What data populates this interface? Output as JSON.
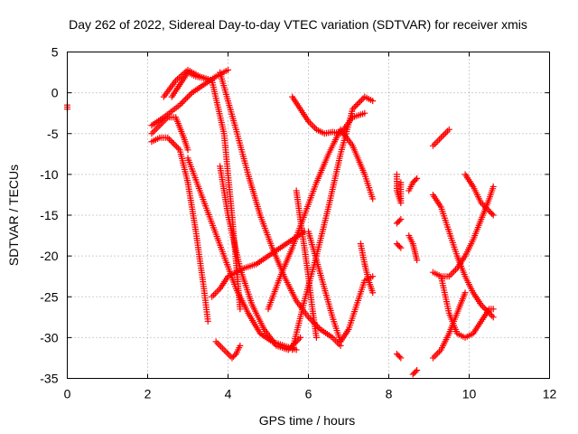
{
  "chart_data": {
    "type": "scatter",
    "title": "Day 262 of 2022, Sidereal Day-to-day VTEC variation (SDTVAR) for receiver xmis",
    "xlabel": "GPS time / hours",
    "ylabel": "SDTVAR / TECUs",
    "xlim": [
      0,
      12
    ],
    "ylim": [
      -35,
      5
    ],
    "xticks": [
      "0",
      "2",
      "4",
      "6",
      "8",
      "10",
      "12"
    ],
    "yticks": [
      "5",
      "0",
      "-5",
      "-10",
      "-15",
      "-20",
      "-25",
      "-30",
      "-35"
    ],
    "grid": true,
    "marker": "+",
    "color": "#ff0000",
    "series": [
      {
        "x": [
          0.0,
          0.0
        ],
        "y": [
          -1.5,
          -2.0
        ]
      },
      {
        "x": [
          2.1,
          2.4,
          2.8,
          3.1,
          3.4,
          3.7,
          4.0
        ],
        "y": [
          -4.0,
          -3.0,
          -1.5,
          0.0,
          1.0,
          2.0,
          2.8
        ]
      },
      {
        "x": [
          2.1,
          2.3,
          2.5,
          2.8,
          3.0,
          3.2,
          3.4,
          3.5
        ],
        "y": [
          -6.0,
          -5.5,
          -5.5,
          -7.0,
          -11.0,
          -17.0,
          -24.0,
          -28.0
        ]
      },
      {
        "x": [
          2.1,
          2.3,
          2.5,
          2.7,
          2.9,
          3.0
        ],
        "y": [
          -5.0,
          -4.0,
          -3.0,
          -3.0,
          -5.5,
          -7.0
        ]
      },
      {
        "x": [
          3.0,
          3.3,
          3.6,
          3.9,
          4.2,
          4.5,
          4.8,
          5.1,
          5.4,
          5.7
        ],
        "y": [
          -8.0,
          -12.0,
          -16.0,
          -20.0,
          -24.0,
          -27.0,
          -29.5,
          -30.5,
          -31.0,
          -31.5
        ]
      },
      {
        "x": [
          2.4,
          2.7,
          3.0,
          3.3,
          3.6,
          3.9,
          4.1,
          4.3
        ],
        "y": [
          -0.5,
          1.5,
          2.8,
          2.0,
          1.5,
          -5.0,
          -15.0,
          -26.5
        ]
      },
      {
        "x": [
          2.6,
          2.8,
          3.0,
          3.2,
          3.4,
          3.6
        ],
        "y": [
          -0.5,
          1.0,
          2.5,
          2.0,
          1.8,
          1.5
        ]
      },
      {
        "x": [
          3.6,
          3.8,
          4.0,
          4.2,
          4.4,
          4.7,
          5.0,
          5.3,
          5.6,
          5.9
        ],
        "y": [
          -25.0,
          -24.0,
          -22.5,
          -22.0,
          -21.5,
          -21.0,
          -20.0,
          -19.0,
          -18.0,
          -17.0
        ]
      },
      {
        "x": [
          3.7,
          3.9,
          4.1,
          4.2,
          4.3
        ],
        "y": [
          -30.5,
          -31.5,
          -32.5,
          -32.0,
          -31.0
        ]
      },
      {
        "x": [
          3.8,
          4.0,
          4.3,
          4.6,
          4.9,
          5.2,
          5.5,
          5.8
        ],
        "y": [
          -9.0,
          -15.0,
          -21.5,
          -26.0,
          -29.0,
          -31.0,
          -31.5,
          -30.0
        ]
      },
      {
        "x": [
          3.8,
          4.0,
          4.2,
          4.5,
          4.8,
          5.1,
          5.4,
          5.7,
          6.0,
          6.3,
          6.6,
          6.8
        ],
        "y": [
          2.5,
          -1.0,
          -4.5,
          -10.0,
          -15.0,
          -19.0,
          -22.5,
          -25.5,
          -27.5,
          -29.0,
          -30.0,
          -31.0
        ]
      },
      {
        "x": [
          5.0,
          5.3,
          5.6,
          5.9,
          6.2,
          6.5,
          6.8,
          7.1,
          7.4,
          7.6
        ],
        "y": [
          -26.5,
          -22.5,
          -19.0,
          -15.0,
          -11.0,
          -7.5,
          -4.5,
          -6.5,
          -10.0,
          -13.0
        ]
      },
      {
        "x": [
          5.6,
          5.8,
          6.0,
          6.2,
          6.4,
          6.6,
          6.8,
          7.1,
          7.4
        ],
        "y": [
          -0.5,
          -2.0,
          -3.5,
          -4.5,
          -5.0,
          -4.8,
          -5.0,
          -3.0,
          -2.5
        ]
      },
      {
        "x": [
          5.6,
          5.9,
          6.2,
          6.5,
          6.8,
          7.1,
          7.4,
          7.6
        ],
        "y": [
          -31.5,
          -25.5,
          -20.0,
          -14.0,
          -7.5,
          -2.0,
          -0.5,
          -1.0
        ]
      },
      {
        "x": [
          5.7,
          5.8,
          5.9,
          6.0,
          6.1,
          6.2
        ],
        "y": [
          -12.0,
          -15.5,
          -19.0,
          -22.5,
          -26.5,
          -30.0
        ]
      },
      {
        "x": [
          6.0,
          6.2,
          6.4,
          6.6,
          6.8,
          7.0,
          7.2,
          7.4,
          7.6
        ],
        "y": [
          -17.0,
          -20.5,
          -24.0,
          -27.5,
          -30.5,
          -29.0,
          -26.0,
          -23.0,
          -22.5
        ]
      },
      {
        "x": [
          7.3,
          7.4,
          7.5,
          7.6
        ],
        "y": [
          -18.5,
          -21.0,
          -23.0,
          -24.5
        ]
      },
      {
        "x": [
          8.2,
          8.2,
          8.3,
          8.3
        ],
        "y": [
          -10.0,
          -12.0,
          -13.5,
          -11.0
        ]
      },
      {
        "x": [
          8.2,
          8.3
        ],
        "y": [
          -16.0,
          -15.5
        ]
      },
      {
        "x": [
          8.2,
          8.3
        ],
        "y": [
          -18.5,
          -19.0
        ]
      },
      {
        "x": [
          8.2,
          8.3
        ],
        "y": [
          -32.0,
          -32.5
        ]
      },
      {
        "x": [
          8.5,
          8.6,
          8.7
        ],
        "y": [
          -12.0,
          -11.0,
          -10.5
        ]
      },
      {
        "x": [
          8.5,
          8.6,
          8.7
        ],
        "y": [
          -17.5,
          -18.5,
          -20.5
        ]
      },
      {
        "x": [
          8.6,
          8.7
        ],
        "y": [
          -34.5,
          -34.0
        ]
      },
      {
        "x": [
          9.1,
          9.3,
          9.5
        ],
        "y": [
          -6.5,
          -5.5,
          -4.5
        ]
      },
      {
        "x": [
          9.1,
          9.3,
          9.5,
          9.7,
          9.9,
          10.1,
          10.3,
          10.6
        ],
        "y": [
          -12.5,
          -14.0,
          -17.0,
          -20.0,
          -22.5,
          -24.5,
          -26.0,
          -27.5
        ]
      },
      {
        "x": [
          9.1,
          9.3,
          9.5,
          9.7,
          9.9,
          10.1,
          10.3,
          10.5,
          10.6
        ],
        "y": [
          -22.0,
          -22.5,
          -22.5,
          -21.5,
          -20.0,
          -18.0,
          -15.5,
          -13.0,
          -11.5
        ]
      },
      {
        "x": [
          9.1,
          9.3,
          9.5,
          9.7,
          9.9
        ],
        "y": [
          -32.5,
          -31.5,
          -29.5,
          -27.0,
          -24.5
        ]
      },
      {
        "x": [
          9.3,
          9.5,
          9.7,
          9.9,
          10.1,
          10.3,
          10.5,
          10.6
        ],
        "y": [
          -22.5,
          -27.0,
          -29.5,
          -30.0,
          -29.5,
          -28.0,
          -26.5,
          -26.5
        ]
      },
      {
        "x": [
          9.9,
          10.1,
          10.3,
          10.5,
          10.6
        ],
        "y": [
          -10.0,
          -11.5,
          -13.5,
          -14.5,
          -15.0
        ]
      }
    ]
  }
}
